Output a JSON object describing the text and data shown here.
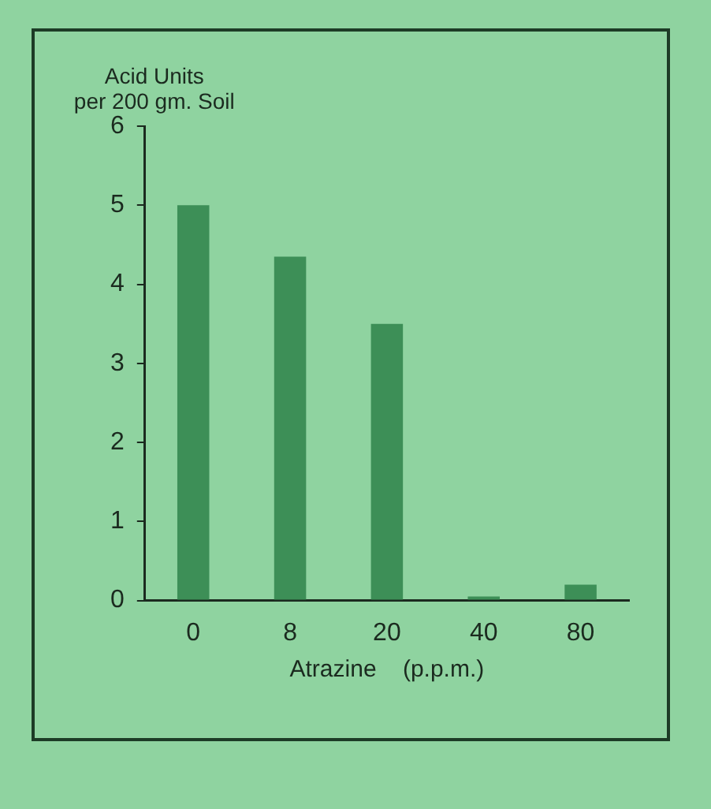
{
  "chart_data": {
    "type": "bar",
    "xlabel": "Atrazine    (p.p.m.)",
    "ylabel": "Acid Units\nper 200 gm. Soil",
    "categories": [
      "0",
      "8",
      "20",
      "40",
      "80"
    ],
    "values": [
      5.0,
      4.35,
      3.5,
      0.05,
      0.2
    ],
    "color": "#3d8f57",
    "ylim": [
      0,
      6
    ],
    "yticks": [
      0,
      1,
      2,
      3,
      4,
      5,
      6
    ],
    "grid": false,
    "legend": false
  }
}
